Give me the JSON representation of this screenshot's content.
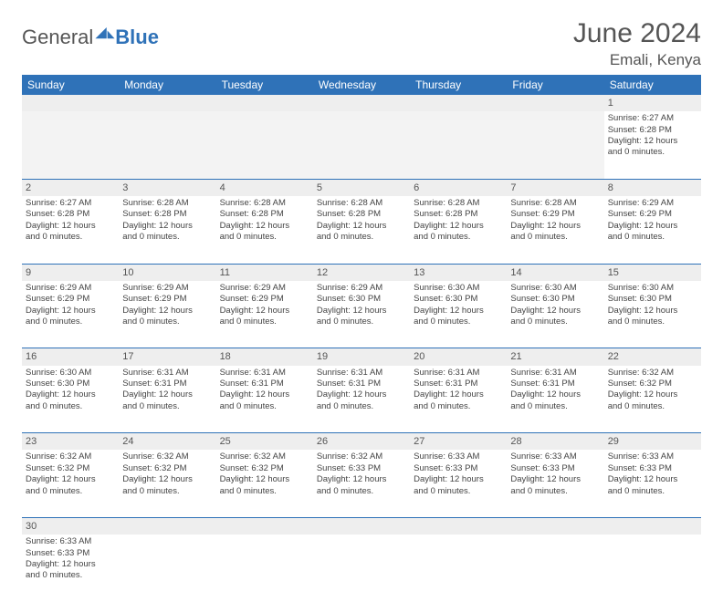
{
  "brand": {
    "part1": "General",
    "part2": "Blue"
  },
  "title": "June 2024",
  "location": "Emali, Kenya",
  "colors": {
    "header_bg": "#2f72b8",
    "header_text": "#ffffff",
    "daynum_bg": "#eeeeee",
    "cell_border": "#2f72b8",
    "text": "#444444",
    "title_text": "#555555"
  },
  "weekdays": [
    "Sunday",
    "Monday",
    "Tuesday",
    "Wednesday",
    "Thursday",
    "Friday",
    "Saturday"
  ],
  "weeks": [
    {
      "nums": [
        "",
        "",
        "",
        "",
        "",
        "",
        "1"
      ],
      "cells": [
        null,
        null,
        null,
        null,
        null,
        null,
        {
          "sr": "Sunrise: 6:27 AM",
          "ss": "Sunset: 6:28 PM",
          "d1": "Daylight: 12 hours",
          "d2": "and 0 minutes."
        }
      ]
    },
    {
      "nums": [
        "2",
        "3",
        "4",
        "5",
        "6",
        "7",
        "8"
      ],
      "cells": [
        {
          "sr": "Sunrise: 6:27 AM",
          "ss": "Sunset: 6:28 PM",
          "d1": "Daylight: 12 hours",
          "d2": "and 0 minutes."
        },
        {
          "sr": "Sunrise: 6:28 AM",
          "ss": "Sunset: 6:28 PM",
          "d1": "Daylight: 12 hours",
          "d2": "and 0 minutes."
        },
        {
          "sr": "Sunrise: 6:28 AM",
          "ss": "Sunset: 6:28 PM",
          "d1": "Daylight: 12 hours",
          "d2": "and 0 minutes."
        },
        {
          "sr": "Sunrise: 6:28 AM",
          "ss": "Sunset: 6:28 PM",
          "d1": "Daylight: 12 hours",
          "d2": "and 0 minutes."
        },
        {
          "sr": "Sunrise: 6:28 AM",
          "ss": "Sunset: 6:28 PM",
          "d1": "Daylight: 12 hours",
          "d2": "and 0 minutes."
        },
        {
          "sr": "Sunrise: 6:28 AM",
          "ss": "Sunset: 6:29 PM",
          "d1": "Daylight: 12 hours",
          "d2": "and 0 minutes."
        },
        {
          "sr": "Sunrise: 6:29 AM",
          "ss": "Sunset: 6:29 PM",
          "d1": "Daylight: 12 hours",
          "d2": "and 0 minutes."
        }
      ]
    },
    {
      "nums": [
        "9",
        "10",
        "11",
        "12",
        "13",
        "14",
        "15"
      ],
      "cells": [
        {
          "sr": "Sunrise: 6:29 AM",
          "ss": "Sunset: 6:29 PM",
          "d1": "Daylight: 12 hours",
          "d2": "and 0 minutes."
        },
        {
          "sr": "Sunrise: 6:29 AM",
          "ss": "Sunset: 6:29 PM",
          "d1": "Daylight: 12 hours",
          "d2": "and 0 minutes."
        },
        {
          "sr": "Sunrise: 6:29 AM",
          "ss": "Sunset: 6:29 PM",
          "d1": "Daylight: 12 hours",
          "d2": "and 0 minutes."
        },
        {
          "sr": "Sunrise: 6:29 AM",
          "ss": "Sunset: 6:30 PM",
          "d1": "Daylight: 12 hours",
          "d2": "and 0 minutes."
        },
        {
          "sr": "Sunrise: 6:30 AM",
          "ss": "Sunset: 6:30 PM",
          "d1": "Daylight: 12 hours",
          "d2": "and 0 minutes."
        },
        {
          "sr": "Sunrise: 6:30 AM",
          "ss": "Sunset: 6:30 PM",
          "d1": "Daylight: 12 hours",
          "d2": "and 0 minutes."
        },
        {
          "sr": "Sunrise: 6:30 AM",
          "ss": "Sunset: 6:30 PM",
          "d1": "Daylight: 12 hours",
          "d2": "and 0 minutes."
        }
      ]
    },
    {
      "nums": [
        "16",
        "17",
        "18",
        "19",
        "20",
        "21",
        "22"
      ],
      "cells": [
        {
          "sr": "Sunrise: 6:30 AM",
          "ss": "Sunset: 6:30 PM",
          "d1": "Daylight: 12 hours",
          "d2": "and 0 minutes."
        },
        {
          "sr": "Sunrise: 6:31 AM",
          "ss": "Sunset: 6:31 PM",
          "d1": "Daylight: 12 hours",
          "d2": "and 0 minutes."
        },
        {
          "sr": "Sunrise: 6:31 AM",
          "ss": "Sunset: 6:31 PM",
          "d1": "Daylight: 12 hours",
          "d2": "and 0 minutes."
        },
        {
          "sr": "Sunrise: 6:31 AM",
          "ss": "Sunset: 6:31 PM",
          "d1": "Daylight: 12 hours",
          "d2": "and 0 minutes."
        },
        {
          "sr": "Sunrise: 6:31 AM",
          "ss": "Sunset: 6:31 PM",
          "d1": "Daylight: 12 hours",
          "d2": "and 0 minutes."
        },
        {
          "sr": "Sunrise: 6:31 AM",
          "ss": "Sunset: 6:31 PM",
          "d1": "Daylight: 12 hours",
          "d2": "and 0 minutes."
        },
        {
          "sr": "Sunrise: 6:32 AM",
          "ss": "Sunset: 6:32 PM",
          "d1": "Daylight: 12 hours",
          "d2": "and 0 minutes."
        }
      ]
    },
    {
      "nums": [
        "23",
        "24",
        "25",
        "26",
        "27",
        "28",
        "29"
      ],
      "cells": [
        {
          "sr": "Sunrise: 6:32 AM",
          "ss": "Sunset: 6:32 PM",
          "d1": "Daylight: 12 hours",
          "d2": "and 0 minutes."
        },
        {
          "sr": "Sunrise: 6:32 AM",
          "ss": "Sunset: 6:32 PM",
          "d1": "Daylight: 12 hours",
          "d2": "and 0 minutes."
        },
        {
          "sr": "Sunrise: 6:32 AM",
          "ss": "Sunset: 6:32 PM",
          "d1": "Daylight: 12 hours",
          "d2": "and 0 minutes."
        },
        {
          "sr": "Sunrise: 6:32 AM",
          "ss": "Sunset: 6:33 PM",
          "d1": "Daylight: 12 hours",
          "d2": "and 0 minutes."
        },
        {
          "sr": "Sunrise: 6:33 AM",
          "ss": "Sunset: 6:33 PM",
          "d1": "Daylight: 12 hours",
          "d2": "and 0 minutes."
        },
        {
          "sr": "Sunrise: 6:33 AM",
          "ss": "Sunset: 6:33 PM",
          "d1": "Daylight: 12 hours",
          "d2": "and 0 minutes."
        },
        {
          "sr": "Sunrise: 6:33 AM",
          "ss": "Sunset: 6:33 PM",
          "d1": "Daylight: 12 hours",
          "d2": "and 0 minutes."
        }
      ]
    },
    {
      "nums": [
        "30",
        "",
        "",
        "",
        "",
        "",
        ""
      ],
      "cells": [
        {
          "sr": "Sunrise: 6:33 AM",
          "ss": "Sunset: 6:33 PM",
          "d1": "Daylight: 12 hours",
          "d2": "and 0 minutes."
        },
        null,
        null,
        null,
        null,
        null,
        null
      ]
    }
  ]
}
